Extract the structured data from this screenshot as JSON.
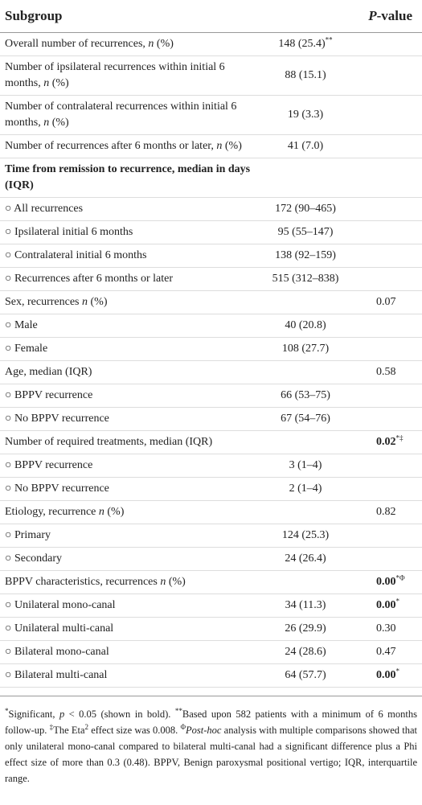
{
  "table": {
    "header": [
      [
        "Subgroup"
      ],
      [],
      [
        {
          "text": "P",
          "style": "italic"
        },
        "-value"
      ]
    ],
    "rows": [
      {
        "label": [
          "Overall number of recurrences, ",
          {
            "text": "n",
            "style": "italic"
          },
          " (%)"
        ],
        "value": [
          "148 (25.4)",
          {
            "text": "**",
            "style": "sup"
          }
        ]
      },
      {
        "label": [
          "Number of ipsilateral recurrences within initial 6 months, ",
          {
            "text": "n",
            "style": "italic"
          },
          " (%)"
        ],
        "value": [
          "88 (15.1)"
        ]
      },
      {
        "label": [
          "Number of contralateral recurrences within initial 6 months, ",
          {
            "text": "n",
            "style": "italic"
          },
          " (%)"
        ],
        "value": [
          "19 (3.3)"
        ]
      },
      {
        "label": [
          "Number of recurrences after 6 months or later, ",
          {
            "text": "n",
            "style": "italic"
          },
          " (%)"
        ],
        "value": [
          "41 (7.0)"
        ]
      },
      {
        "label": [
          {
            "text": "Time from remission to recurrence, median in days (IQR)",
            "style": "bold"
          }
        ]
      },
      {
        "label": [
          "○ All recurrences"
        ],
        "value": [
          "172 (90–465)"
        ]
      },
      {
        "label": [
          "○ Ipsilateral initial 6 months"
        ],
        "value": [
          "95 (55–147)"
        ]
      },
      {
        "label": [
          "○ Contralateral initial 6 months"
        ],
        "value": [
          "138 (92–159)"
        ]
      },
      {
        "label": [
          "○ Recurrences after 6 months or later"
        ],
        "value": [
          "515 (312–838)"
        ]
      },
      {
        "label": [
          "Sex, recurrences ",
          {
            "text": "n",
            "style": "italic"
          },
          " (%)"
        ],
        "p": [
          "0.07"
        ]
      },
      {
        "label": [
          "○ Male"
        ],
        "value": [
          "40 (20.8)"
        ]
      },
      {
        "label": [
          "○ Female"
        ],
        "value": [
          "108 (27.7)"
        ]
      },
      {
        "label": [
          "Age, median (IQR)"
        ],
        "p": [
          "0.58"
        ]
      },
      {
        "label": [
          "○ BPPV recurrence"
        ],
        "value": [
          "66 (53–75)"
        ]
      },
      {
        "label": [
          "○ No BPPV recurrence"
        ],
        "value": [
          "67 (54–76)"
        ]
      },
      {
        "label": [
          "Number of required treatments, median (IQR)"
        ],
        "p": [
          {
            "text": "0.02",
            "style": "bold"
          },
          {
            "text": "*‡",
            "style": "sup"
          }
        ]
      },
      {
        "label": [
          "○ BPPV recurrence"
        ],
        "value": [
          "3 (1–4)"
        ]
      },
      {
        "label": [
          "○ No BPPV recurrence"
        ],
        "value": [
          "2 (1–4)"
        ]
      },
      {
        "label": [
          "Etiology, recurrence ",
          {
            "text": "n",
            "style": "italic"
          },
          " (%)"
        ],
        "p": [
          "0.82"
        ]
      },
      {
        "label": [
          "○ Primary"
        ],
        "value": [
          "124 (25.3)"
        ]
      },
      {
        "label": [
          "○ Secondary"
        ],
        "value": [
          "24 (26.4)"
        ]
      },
      {
        "label": [
          "BPPV characteristics, recurrences ",
          {
            "text": "n",
            "style": "italic"
          },
          " (%)"
        ],
        "p": [
          {
            "text": "0.00",
            "style": "bold"
          },
          {
            "text": "*Φ",
            "style": "sup"
          }
        ]
      },
      {
        "label": [
          "○ Unilateral mono-canal"
        ],
        "value": [
          "34 (11.3)"
        ],
        "p": [
          {
            "text": "0.00",
            "style": "bold"
          },
          {
            "text": "*",
            "style": "sup"
          }
        ]
      },
      {
        "label": [
          "○ Unilateral multi-canal"
        ],
        "value": [
          "26 (29.9)"
        ],
        "p": [
          "0.30"
        ]
      },
      {
        "label": [
          "○ Bilateral mono-canal"
        ],
        "value": [
          "24 (28.6)"
        ],
        "p": [
          "0.47"
        ]
      },
      {
        "label": [
          "○ Bilateral multi-canal"
        ],
        "value": [
          "64 (57.7)"
        ],
        "p": [
          {
            "text": "0.00",
            "style": "bold"
          },
          {
            "text": "*",
            "style": "sup"
          }
        ]
      }
    ],
    "footnote": [
      {
        "text": "*",
        "style": "sup"
      },
      "Significant, ",
      {
        "text": "p",
        "style": "italic"
      },
      " < 0.05 (shown in bold). ",
      {
        "text": "**",
        "style": "sup"
      },
      "Based upon 582 patients with a minimum of 6 months follow-up. ",
      {
        "text": "‡",
        "style": "sup"
      },
      "The Eta",
      {
        "text": "2",
        "style": "sup"
      },
      " effect size was 0.008. ",
      {
        "text": "Φ",
        "style": "sup"
      },
      {
        "text": "Post-hoc",
        "style": "italic"
      },
      " analysis with multiple comparisons showed that only unilateral mono-canal compared to bilateral multi-canal had a significant difference plus a Phi effect size of more than 0.3 (0.48). BPPV, Benign paroxysmal positional vertigo; IQR, interquartile range."
    ]
  }
}
